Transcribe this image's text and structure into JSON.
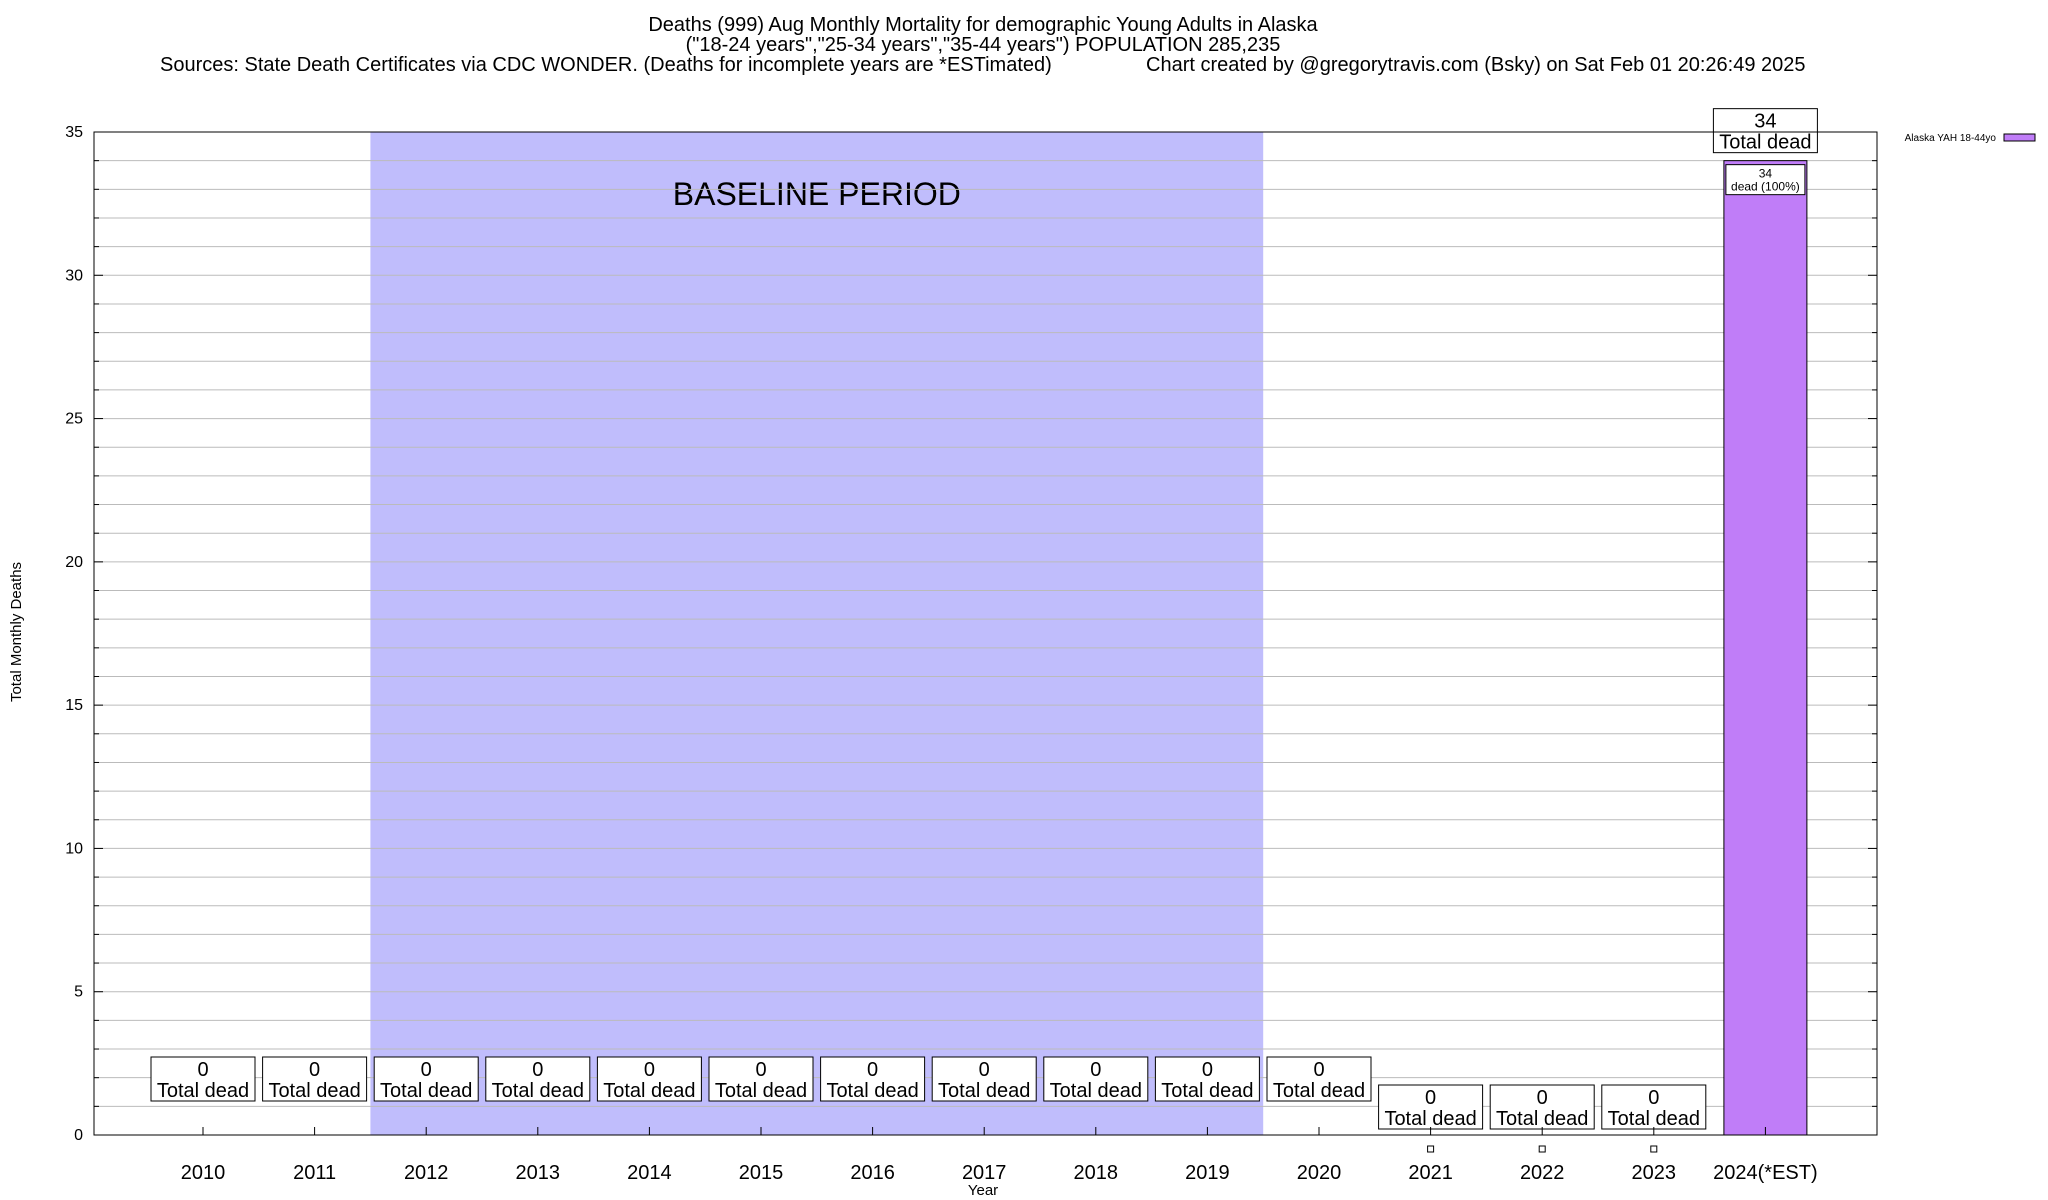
{
  "header": {
    "title_line1": "Deaths (999) Aug Monthly Mortality for demographic Young Adults in Alaska",
    "title_line2": "(\"18-24 years\",\"25-34 years\",\"35-44 years\") POPULATION 285,235",
    "sources": "Sources: State Death Certificates via CDC WONDER. (Deaths for incomplete years are *ESTimated)",
    "credit": "Chart created by @gregorytravis.com (Bsky) on Sat Feb 01 20:26:49 2025"
  },
  "colors": {
    "baseline": "#c0bdfc",
    "bar": "#c07df8",
    "grid": "#bbbbbb"
  },
  "chart_data": {
    "type": "bar",
    "xlabel": "Year",
    "ylabel": "Total Monthly Deaths",
    "ylim": [
      0,
      35
    ],
    "yticks": [
      0,
      5,
      10,
      15,
      20,
      25,
      30,
      35
    ],
    "grid": true,
    "legend_position": "top-right",
    "categories": [
      "2010",
      "2011",
      "2012",
      "2013",
      "2014",
      "2015",
      "2016",
      "2017",
      "2018",
      "2019",
      "2020",
      "2021",
      "2022",
      "2023",
      "2024(*EST)"
    ],
    "series": [
      {
        "name": "Alaska YAH 18-44yo",
        "values": [
          0,
          0,
          0,
          0,
          0,
          0,
          0,
          0,
          0,
          0,
          0,
          0,
          0,
          0,
          34
        ]
      }
    ],
    "bar_inner_labels": [
      "",
      "",
      "",
      "",
      "",
      "",
      "",
      "",
      "",
      "",
      "",
      "",
      "",
      "",
      "34\ndead (100%)"
    ],
    "total_label_suffix": "Total dead",
    "baseline_region": {
      "label": "BASELINE PERIOD",
      "from": "2012",
      "to": "2019"
    }
  }
}
